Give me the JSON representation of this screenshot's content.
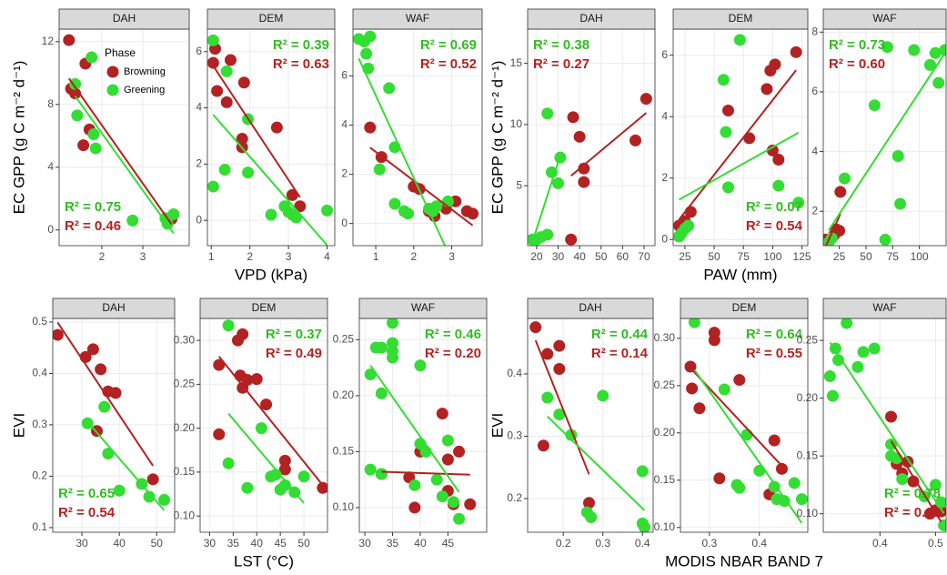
{
  "chart_data": [
    {
      "type": "scatter",
      "title": "DAH",
      "ylabel": "EC GPP  (g C m⁻² d⁻¹)",
      "legend_title": "Phase",
      "legend": true,
      "annotation_corner": "bottom-left",
      "xlim": [
        0.96,
        4.13
      ],
      "xticks": [
        2,
        3
      ],
      "ylim": [
        -1,
        12.8
      ],
      "yticks": [
        0,
        4,
        8,
        12
      ],
      "grid": true,
      "series": [
        {
          "name": "Browning",
          "color": "#b22222",
          "x": [
            1.2,
            1.25,
            1.35,
            1.6,
            1.7,
            1.55,
            3.7
          ],
          "values": [
            12.1,
            9.0,
            8.7,
            10.6,
            6.4,
            5.4,
            0.7
          ]
        },
        {
          "name": "Greening",
          "color": "#33dd33",
          "x": [
            1.75,
            1.35,
            1.4,
            1.8,
            1.85,
            2.75,
            3.55,
            3.6,
            3.75
          ],
          "values": [
            11.0,
            9.3,
            7.3,
            6.1,
            5.2,
            0.6,
            0.75,
            0.4,
            1.0
          ]
        }
      ],
      "annotations": [
        {
          "text": "R² = 0.75",
          "color": "#33bb22"
        },
        {
          "text": "R² = 0.46",
          "color": "#b22222"
        }
      ]
    },
    {
      "type": "scatter",
      "title": "DEM",
      "xlabel": "VPD (kPa)",
      "annotation_corner": "top-right",
      "xlim": [
        0.9,
        4.2
      ],
      "xticks": [
        1,
        2,
        3,
        4
      ],
      "ylim": [
        -0.9,
        6.8
      ],
      "yticks": [
        0,
        2,
        4,
        6
      ],
      "grid": true,
      "series": [
        {
          "color": "#b22222",
          "x": [
            1.05,
            1.1,
            1.15,
            1.4,
            1.5,
            1.85,
            1.8,
            1.8,
            2.7,
            3.1,
            3.3
          ],
          "values": [
            5.6,
            6.1,
            4.6,
            4.2,
            5.7,
            4.9,
            2.9,
            2.6,
            3.3,
            0.9,
            0.5
          ]
        },
        {
          "color": "#33dd33",
          "x": [
            1.05,
            1.05,
            1.35,
            1.4,
            1.95,
            1.95,
            2.55,
            2.9,
            3.0,
            3.1,
            3.2,
            4.0
          ],
          "values": [
            6.4,
            1.2,
            1.8,
            5.3,
            3.6,
            1.7,
            0.2,
            0.5,
            0.3,
            0.2,
            0.1,
            0.35
          ]
        }
      ],
      "annotations": [
        {
          "text": "R² = 0.39",
          "color": "#33bb22"
        },
        {
          "text": "R² = 0.63",
          "color": "#b22222"
        }
      ]
    },
    {
      "type": "scatter",
      "title": "WAF",
      "annotation_corner": "top-right",
      "xlim": [
        0.4,
        3.8
      ],
      "xticks": [
        1,
        2,
        3
      ],
      "ylim": [
        -0.9,
        7.9
      ],
      "yticks": [
        0,
        2,
        4,
        6
      ],
      "grid": true,
      "series": [
        {
          "color": "#b22222",
          "x": [
            0.85,
            1.15,
            2.0,
            2.15,
            2.4,
            2.55,
            2.85,
            3.4,
            3.55,
            3.1
          ],
          "values": [
            3.9,
            2.7,
            1.5,
            1.4,
            0.5,
            0.3,
            0.6,
            0.5,
            0.4,
            0.9
          ]
        },
        {
          "color": "#33dd33",
          "x": [
            0.55,
            0.7,
            0.75,
            0.8,
            0.85,
            1.1,
            1.35,
            1.5,
            1.5,
            1.75,
            1.85,
            2.4,
            2.5,
            2.9,
            2.6
          ],
          "values": [
            7.5,
            7.4,
            6.9,
            6.3,
            7.6,
            2.2,
            5.5,
            3.1,
            0.8,
            0.5,
            0.4,
            0.6,
            0.5,
            0.9,
            0.7
          ]
        }
      ],
      "annotations": [
        {
          "text": "R² = 0.69",
          "color": "#33bb22"
        },
        {
          "text": "R² = 0.52",
          "color": "#b22222"
        }
      ]
    },
    {
      "type": "scatter",
      "title": "DAH",
      "ylabel": "EC GPP  (g C m⁻² d⁻¹)",
      "annotation_corner": "top-left",
      "xlim": [
        15.8,
        75.1
      ],
      "xticks": [
        20,
        30,
        40,
        50,
        60,
        70
      ],
      "ylim": [
        0.1,
        17.8
      ],
      "yticks": [
        5,
        10,
        15
      ],
      "grid": true,
      "series": [
        {
          "color": "#b22222",
          "x": [
            37,
            40,
            42,
            42,
            36,
            66,
            71
          ],
          "values": [
            10.6,
            9.0,
            6.4,
            5.3,
            0.6,
            8.7,
            12.1
          ]
        },
        {
          "color": "#33dd33",
          "x": [
            18,
            20,
            22,
            25,
            25,
            27,
            30,
            31
          ],
          "values": [
            0.6,
            0.6,
            0.8,
            1.0,
            10.9,
            6.1,
            5.2,
            7.3
          ]
        }
      ],
      "annotations": [
        {
          "text": "R² = 0.38",
          "color": "#33bb22"
        },
        {
          "text": "R² = 0.27",
          "color": "#b22222"
        }
      ]
    },
    {
      "type": "scatter",
      "title": "DEM",
      "xlabel": "PAW (mm)",
      "annotation_corner": "bottom-right",
      "xlim": [
        15,
        130
      ],
      "xticks": [
        25,
        50,
        75,
        100,
        125
      ],
      "ylim": [
        -0.2,
        6.85
      ],
      "yticks": [
        0,
        2,
        4,
        6
      ],
      "grid": true,
      "series": [
        {
          "color": "#b22222",
          "x": [
            20,
            25,
            30,
            62,
            80,
            95,
            98,
            100,
            102,
            105,
            120
          ],
          "values": [
            0.45,
            0.6,
            0.9,
            4.2,
            3.3,
            4.9,
            5.5,
            2.9,
            5.7,
            2.6,
            6.1
          ]
        },
        {
          "color": "#33dd33",
          "x": [
            20,
            22,
            25,
            28,
            58,
            60,
            62,
            72,
            105,
            122
          ],
          "values": [
            0.1,
            0.2,
            0.35,
            0.45,
            5.2,
            3.5,
            1.7,
            6.5,
            1.75,
            1.2
          ]
        }
      ],
      "annotations": [
        {
          "text": "R² = 0.07",
          "color": "#33bb22"
        },
        {
          "text": "R² = 0.54",
          "color": "#b22222"
        }
      ]
    },
    {
      "type": "scatter",
      "title": "WAF",
      "annotation_corner": "top-left",
      "xlim": [
        10,
        125
      ],
      "xticks": [
        25,
        50,
        75,
        100
      ],
      "ylim": [
        0.85,
        8.1
      ],
      "yticks": [
        2,
        4,
        6,
        8
      ],
      "grid": true,
      "series": [
        {
          "color": "#b22222",
          "x": [
            12,
            16,
            20,
            22,
            25,
            26
          ],
          "values": [
            1.05,
            1.05,
            1.2,
            1.4,
            1.35,
            2.65
          ]
        },
        {
          "color": "#33dd33",
          "x": [
            15,
            18,
            30,
            58,
            68,
            70,
            80,
            82,
            95,
            110,
            115,
            118,
            124
          ],
          "values": [
            0.95,
            1.1,
            3.1,
            5.55,
            1.05,
            7.5,
            3.85,
            2.25,
            7.4,
            6.9,
            7.3,
            6.3,
            7.4
          ]
        }
      ],
      "annotations": [
        {
          "text": "R² = 0.73",
          "color": "#33bb22"
        },
        {
          "text": "R² = 0.60",
          "color": "#b22222"
        }
      ]
    },
    {
      "type": "scatter",
      "title": "DAH",
      "ylabel": "EVI",
      "annotation_corner": "bottom-left",
      "xlim": [
        22.2,
        54.8
      ],
      "xticks": [
        30,
        40,
        50
      ],
      "ylim": [
        0.091,
        0.507
      ],
      "yticks": [
        0.1,
        0.2,
        0.3,
        0.4,
        0.5
      ],
      "grid": true,
      "series": [
        {
          "color": "#b22222",
          "x": [
            23.5,
            31,
            33,
            35,
            34,
            37,
            39,
            49
          ],
          "values": [
            0.475,
            0.432,
            0.447,
            0.408,
            0.288,
            0.365,
            0.362,
            0.194
          ]
        },
        {
          "color": "#33dd33",
          "x": [
            31.5,
            36,
            37,
            40,
            46,
            48,
            52
          ],
          "values": [
            0.303,
            0.335,
            0.244,
            0.172,
            0.185,
            0.16,
            0.154
          ]
        }
      ],
      "annotations": [
        {
          "text": "R² = 0.65",
          "color": "#33bb22"
        },
        {
          "text": "R² = 0.54",
          "color": "#b22222"
        }
      ]
    },
    {
      "type": "scatter",
      "title": "DEM",
      "xlabel": "LST  (°C)",
      "annotation_corner": "top-right",
      "xlim": [
        28,
        55
      ],
      "xticks": [
        30,
        35,
        40,
        45,
        50
      ],
      "ylim": [
        0.0815,
        0.325
      ],
      "yticks": [
        {
          "value": 0.1,
          "label": "0.10"
        },
        {
          "value": 0.15,
          "label": "0.15"
        },
        {
          "value": 0.2,
          "label": "0.20"
        },
        {
          "value": 0.25,
          "label": "0.25"
        },
        {
          "value": 0.3,
          "label": "0.30"
        }
      ],
      "grid": true,
      "series": [
        {
          "color": "#b22222",
          "x": [
            32,
            32,
            36,
            37,
            36.5,
            38,
            37,
            40,
            42,
            46,
            46,
            54
          ],
          "values": [
            0.272,
            0.193,
            0.3,
            0.307,
            0.26,
            0.255,
            0.246,
            0.256,
            0.227,
            0.163,
            0.153,
            0.132
          ]
        },
        {
          "color": "#33dd33",
          "x": [
            34,
            34,
            38,
            41,
            43,
            44,
            45,
            46,
            48,
            50
          ],
          "values": [
            0.317,
            0.16,
            0.132,
            0.2,
            0.145,
            0.147,
            0.13,
            0.135,
            0.127,
            0.145
          ]
        }
      ],
      "annotations": [
        {
          "text": "R² = 0.37",
          "color": "#33bb22"
        },
        {
          "text": "R² = 0.49",
          "color": "#b22222"
        }
      ]
    },
    {
      "type": "scatter",
      "title": "WAF",
      "annotation_corner": "top-right",
      "xlim": [
        29,
        52
      ],
      "xticks": [
        30,
        35,
        40,
        45
      ],
      "ylim": [
        0.078,
        0.269
      ],
      "yticks": [
        {
          "value": 0.1,
          "label": "0.10"
        },
        {
          "value": 0.15,
          "label": "0.15"
        },
        {
          "value": 0.2,
          "label": "0.20"
        },
        {
          "value": 0.25,
          "label": "0.25"
        }
      ],
      "grid": true,
      "series": [
        {
          "color": "#b22222",
          "x": [
            33,
            38,
            39,
            40,
            44,
            45,
            45,
            46,
            47,
            49
          ],
          "values": [
            0.13,
            0.127,
            0.1,
            0.15,
            0.184,
            0.143,
            0.115,
            0.103,
            0.15,
            0.103
          ]
        },
        {
          "color": "#33dd33",
          "x": [
            31,
            32,
            33,
            35,
            35,
            35,
            35,
            33,
            31,
            33,
            40,
            40,
            41,
            43,
            44,
            45,
            46,
            47,
            39
          ],
          "values": [
            0.219,
            0.243,
            0.243,
            0.265,
            0.247,
            0.24,
            0.234,
            0.202,
            0.134,
            0.13,
            0.227,
            0.157,
            0.15,
            0.125,
            0.11,
            0.16,
            0.105,
            0.09,
            0.12
          ]
        }
      ],
      "annotations": [
        {
          "text": "R² = 0.46",
          "color": "#33bb22"
        },
        {
          "text": "R² = 0.20",
          "color": "#b22222"
        }
      ]
    },
    {
      "type": "scatter",
      "title": "DAH",
      "ylabel": "EVI",
      "annotation_corner": "top-right",
      "xlim": [
        0.11,
        0.427
      ],
      "xticks": [
        0.2,
        0.3,
        0.4
      ],
      "ylim": [
        0.146,
        0.489
      ],
      "yticks": [
        0.2,
        0.3,
        0.4
      ],
      "grid": true,
      "series": [
        {
          "color": "#b22222",
          "x": [
            0.13,
            0.16,
            0.19,
            0.19,
            0.15,
            0.265
          ],
          "values": [
            0.475,
            0.432,
            0.445,
            0.408,
            0.285,
            0.193
          ]
        },
        {
          "color": "#33dd33",
          "x": [
            0.16,
            0.19,
            0.22,
            0.3,
            0.26,
            0.27,
            0.4,
            0.4,
            0.405
          ],
          "values": [
            0.362,
            0.335,
            0.302,
            0.365,
            0.178,
            0.17,
            0.244,
            0.16,
            0.154
          ]
        }
      ],
      "annotations": [
        {
          "text": "R² = 0.44",
          "color": "#33bb22"
        },
        {
          "text": "R² = 0.14",
          "color": "#b22222"
        }
      ]
    },
    {
      "type": "scatter",
      "title": "DEM",
      "xlabel": "MODIS NBAR BAND 7",
      "annotation_corner": "top-right",
      "xlim": [
        0.242,
        0.497
      ],
      "xticks": [
        0.3,
        0.4
      ],
      "ylim": [
        0.095,
        0.321
      ],
      "yticks": [
        {
          "value": 0.1,
          "label": "0.10"
        },
        {
          "value": 0.15,
          "label": "0.15"
        },
        {
          "value": 0.2,
          "label": "0.20"
        },
        {
          "value": 0.25,
          "label": "0.25"
        },
        {
          "value": 0.3,
          "label": "0.30"
        }
      ],
      "grid": true,
      "series": [
        {
          "color": "#b22222",
          "x": [
            0.262,
            0.265,
            0.28,
            0.31,
            0.31,
            0.36,
            0.32,
            0.43,
            0.445,
            0.42
          ],
          "values": [
            0.27,
            0.247,
            0.226,
            0.306,
            0.298,
            0.256,
            0.152,
            0.192,
            0.162,
            0.135
          ]
        },
        {
          "color": "#33dd33",
          "x": [
            0.27,
            0.33,
            0.355,
            0.36,
            0.375,
            0.4,
            0.43,
            0.435,
            0.45,
            0.47,
            0.485
          ],
          "values": [
            0.317,
            0.246,
            0.145,
            0.142,
            0.198,
            0.16,
            0.143,
            0.13,
            0.128,
            0.147,
            0.13
          ]
        }
      ],
      "annotations": [
        {
          "text": "R² = 0.64",
          "color": "#33bb22"
        },
        {
          "text": "R² = 0.55",
          "color": "#b22222"
        }
      ]
    },
    {
      "type": "scatter",
      "title": "WAF",
      "annotation_corner": "bottom-right",
      "xlim": [
        0.298,
        0.519
      ],
      "xticks": [
        0.4,
        0.5
      ],
      "ylim": [
        0.084,
        0.269
      ],
      "yticks": [
        {
          "value": 0.1,
          "label": "0.10"
        },
        {
          "value": 0.15,
          "label": "0.15"
        },
        {
          "value": 0.2,
          "label": "0.20"
        },
        {
          "value": 0.25,
          "label": "0.25"
        }
      ],
      "grid": true,
      "series": [
        {
          "color": "#b22222",
          "x": [
            0.42,
            0.43,
            0.44,
            0.45,
            0.46,
            0.49,
            0.5,
            0.51
          ],
          "values": [
            0.184,
            0.143,
            0.135,
            0.145,
            0.128,
            0.1,
            0.103,
            0.102
          ]
        },
        {
          "color": "#33dd33",
          "x": [
            0.31,
            0.32,
            0.34,
            0.325,
            0.315,
            0.36,
            0.37,
            0.39,
            0.42,
            0.42,
            0.43,
            0.44,
            0.48,
            0.5,
            0.51,
            0.515
          ],
          "values": [
            0.219,
            0.243,
            0.265,
            0.233,
            0.202,
            0.227,
            0.24,
            0.243,
            0.16,
            0.15,
            0.148,
            0.13,
            0.115,
            0.125,
            0.11,
            0.09
          ]
        }
      ],
      "annotations": [
        {
          "text": "R² = 0.78",
          "color": "#33bb22"
        },
        {
          "text": "R² = 0.69",
          "color": "#b22222"
        }
      ]
    }
  ]
}
